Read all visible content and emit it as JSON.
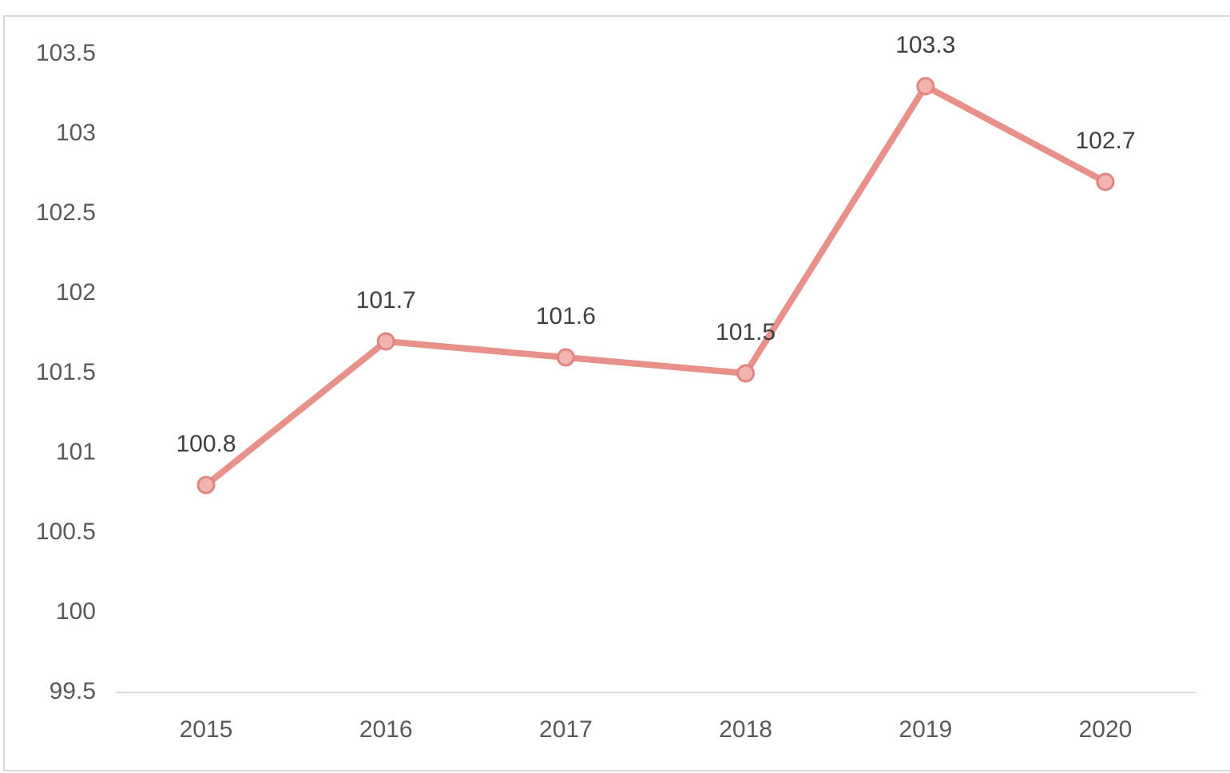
{
  "chart_data": {
    "type": "line",
    "categories": [
      "2015",
      "2016",
      "2017",
      "2018",
      "2019",
      "2020"
    ],
    "series": [
      {
        "color": "#e8908a",
        "values": [
          100.8,
          101.7,
          101.6,
          101.5,
          103.3,
          102.7
        ]
      }
    ],
    "ylim": [
      99.5,
      103.5
    ],
    "yticks": [
      99.5,
      100,
      100.5,
      101,
      101.5,
      102,
      102.5,
      103,
      103.5
    ],
    "grid": false,
    "data_labels": true
  }
}
